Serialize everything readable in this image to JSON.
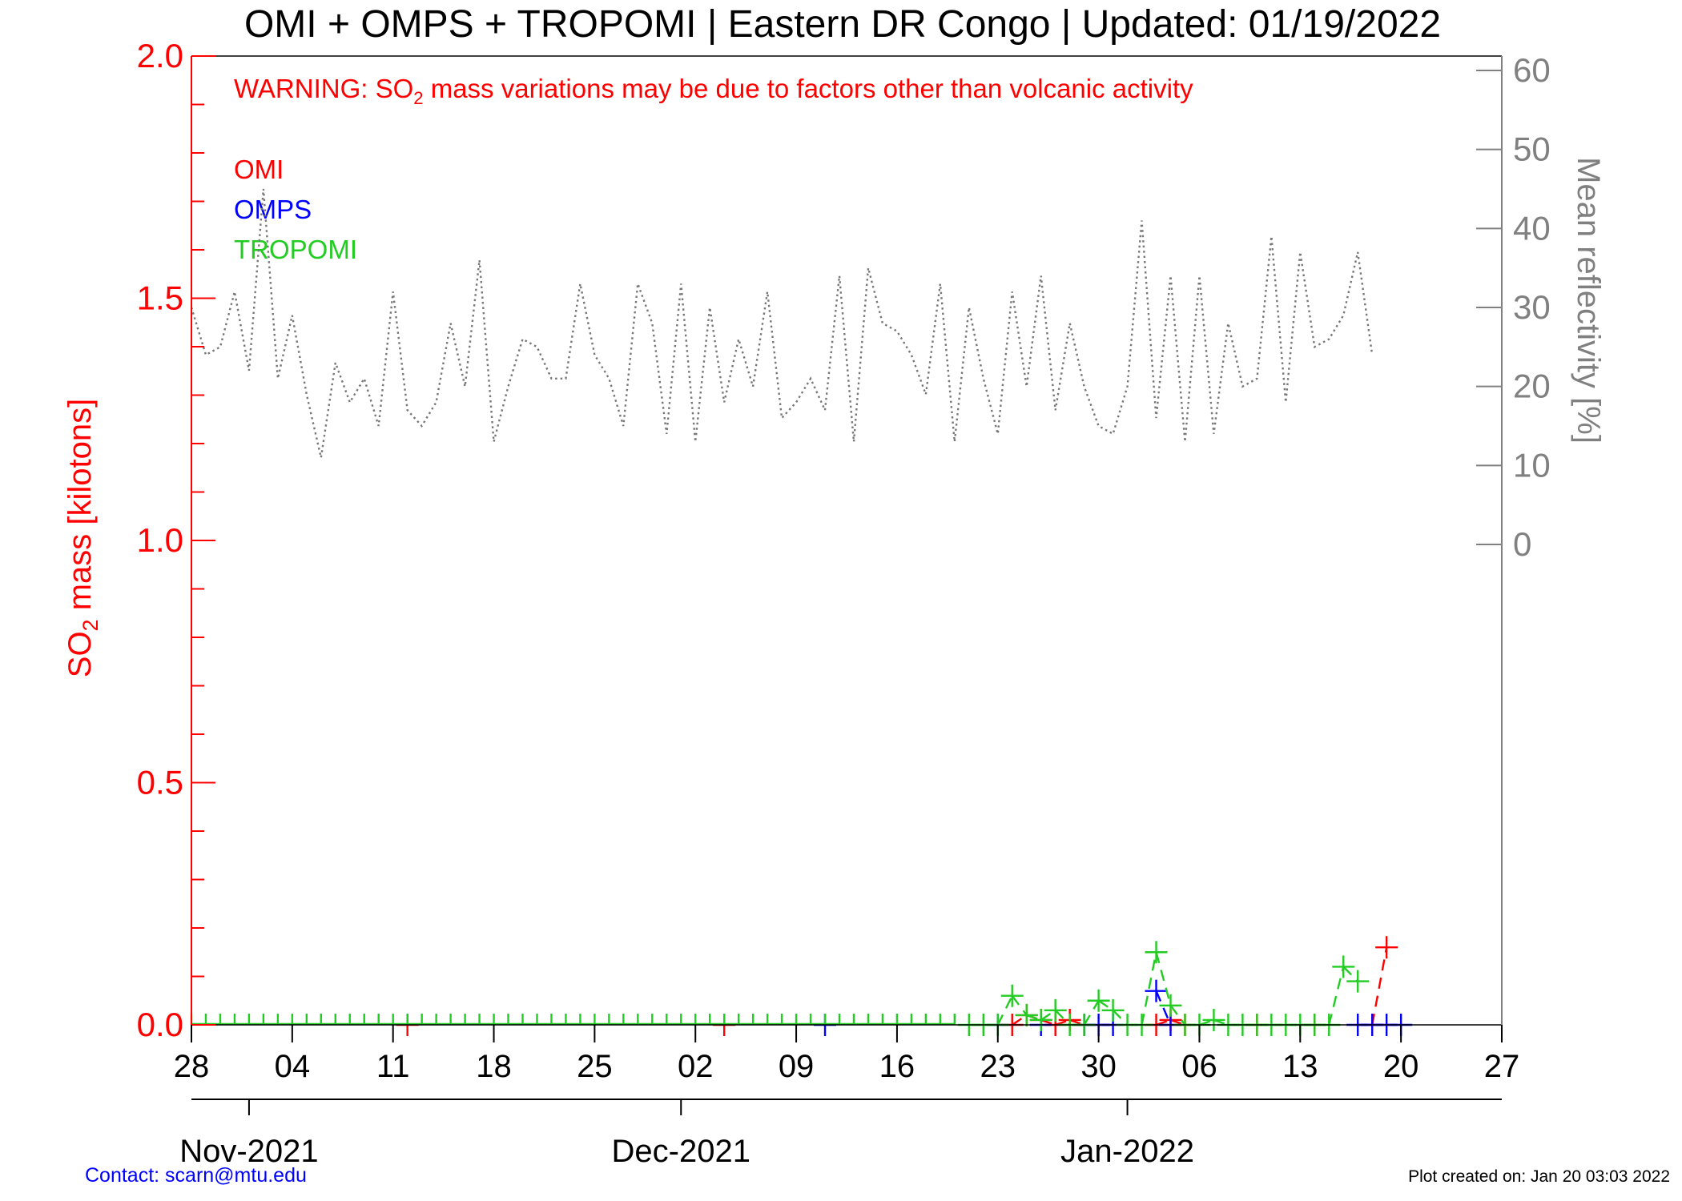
{
  "chart_data": {
    "type": "line",
    "title": "OMI + OMPS + TROPOMI | Eastern DR Congo | Updated: 01/19/2022",
    "warning": {
      "prefix": "WARNING: SO",
      "subscript": "2",
      "suffix": " mass variations may be due to factors other than volcanic activity"
    },
    "ylabel_left": {
      "prefix": "SO",
      "subscript": "2",
      "suffix": " mass [kilotons]"
    },
    "ylabel_right": "Mean reflectivity [%]",
    "ylim_left": [
      0.0,
      2.0
    ],
    "ylim_right": [
      0,
      60
    ],
    "yticks_left": [
      "0.0",
      "0.5",
      "1.0",
      "1.5",
      "2.0"
    ],
    "yticks_right": [
      "0",
      "10",
      "20",
      "30",
      "40",
      "50",
      "60"
    ],
    "x_range": [
      "2021-10-28",
      "2022-01-27"
    ],
    "x_tick_labels": [
      "28",
      "04",
      "11",
      "18",
      "25",
      "02",
      "09",
      "16",
      "23",
      "30",
      "06",
      "13",
      "20",
      "27"
    ],
    "month_labels": [
      "Nov-2021",
      "Dec-2021",
      "Jan-2022"
    ],
    "legend": [
      "OMI",
      "OMPS",
      "TROPOMI"
    ],
    "legend_placement": "top-left",
    "colors": {
      "axis_left": "#ff0000",
      "axis_right": "#808080",
      "OMI": "#ff0000",
      "OMPS": "#0000ff",
      "TROPOMI": "#22cc22",
      "reflectivity": "#777777",
      "footer_contact": "#0000ff",
      "footer_created": "#000000",
      "title": "#000000"
    },
    "series": [
      {
        "name": "OMI",
        "axis": "left",
        "points": [
          [
            "2021-11-12",
            0.0
          ],
          [
            "2021-12-04",
            0.0
          ],
          [
            "2021-12-24",
            0.0
          ],
          [
            "2021-12-25",
            0.02
          ],
          [
            "2021-12-26",
            0.01
          ],
          [
            "2021-12-27",
            0.0
          ],
          [
            "2021-12-28",
            0.01
          ],
          [
            "2021-12-29",
            0.0
          ],
          [
            "2022-01-03",
            0.0
          ],
          [
            "2022-01-04",
            0.01
          ],
          [
            "2022-01-05",
            0.0
          ],
          [
            "2022-01-10",
            0.0
          ],
          [
            "2022-01-14",
            0.0
          ],
          [
            "2022-01-18",
            0.0
          ],
          [
            "2022-01-19",
            0.16
          ]
        ]
      },
      {
        "name": "OMPS",
        "axis": "left",
        "points": [
          [
            "2021-12-11",
            0.0
          ],
          [
            "2021-12-23",
            0.0
          ],
          [
            "2021-12-26",
            0.0
          ],
          [
            "2021-12-29",
            0.0
          ],
          [
            "2021-12-30",
            0.0
          ],
          [
            "2021-12-31",
            0.0
          ],
          [
            "2022-01-03",
            0.07
          ],
          [
            "2022-01-04",
            0.0
          ],
          [
            "2022-01-17",
            0.0
          ],
          [
            "2022-01-18",
            0.0
          ],
          [
            "2022-01-19",
            0.0
          ],
          [
            "2022-01-20",
            0.0
          ]
        ]
      },
      {
        "name": "TROPOMI",
        "axis": "left",
        "baseline_range": [
          "2021-10-28",
          "2021-12-20"
        ],
        "points": [
          [
            "2021-12-21",
            0.0
          ],
          [
            "2021-12-22",
            0.0
          ],
          [
            "2021-12-23",
            0.0
          ],
          [
            "2021-12-24",
            0.06
          ],
          [
            "2021-12-25",
            0.02
          ],
          [
            "2021-12-26",
            0.01
          ],
          [
            "2021-12-27",
            0.03
          ],
          [
            "2021-12-28",
            0.0
          ],
          [
            "2021-12-29",
            0.0
          ],
          [
            "2021-12-30",
            0.05
          ],
          [
            "2021-12-31",
            0.03
          ],
          [
            "2022-01-01",
            0.0
          ],
          [
            "2022-01-02",
            0.0
          ],
          [
            "2022-01-03",
            0.15
          ],
          [
            "2022-01-04",
            0.04
          ],
          [
            "2022-01-05",
            0.0
          ],
          [
            "2022-01-06",
            0.0
          ],
          [
            "2022-01-07",
            0.01
          ],
          [
            "2022-01-08",
            0.0
          ],
          [
            "2022-01-09",
            0.0
          ],
          [
            "2022-01-10",
            0.0
          ],
          [
            "2022-01-11",
            0.0
          ],
          [
            "2022-01-12",
            0.0
          ],
          [
            "2022-01-13",
            0.0
          ],
          [
            "2022-01-14",
            0.0
          ],
          [
            "2022-01-15",
            0.0
          ],
          [
            "2022-01-16",
            0.12
          ],
          [
            "2022-01-17",
            0.09
          ]
        ]
      },
      {
        "name": "Mean reflectivity",
        "axis": "right",
        "style": "dotted",
        "start": "2021-10-28",
        "values": [
          30,
          24,
          25,
          32,
          22,
          45,
          21,
          29,
          19,
          11,
          23,
          18,
          21,
          15,
          32,
          17,
          15,
          18,
          28,
          20,
          36,
          13,
          20,
          26,
          25,
          21,
          21,
          33,
          24,
          21,
          15,
          33,
          28,
          14,
          33,
          13,
          30,
          18,
          26,
          20,
          32,
          16,
          18,
          21,
          17,
          34,
          13,
          35,
          28,
          27,
          24,
          19,
          33,
          13,
          30,
          21,
          14,
          32,
          20,
          34,
          17,
          28,
          20,
          15,
          14,
          20,
          41,
          16,
          34,
          13,
          34,
          14,
          28,
          20,
          21,
          39,
          18,
          37,
          25,
          26,
          29,
          37,
          24
        ]
      }
    ],
    "footer": {
      "contact": "Contact: scarn@mtu.edu",
      "created": "Plot created on: Jan 20 03:03 2022"
    }
  }
}
